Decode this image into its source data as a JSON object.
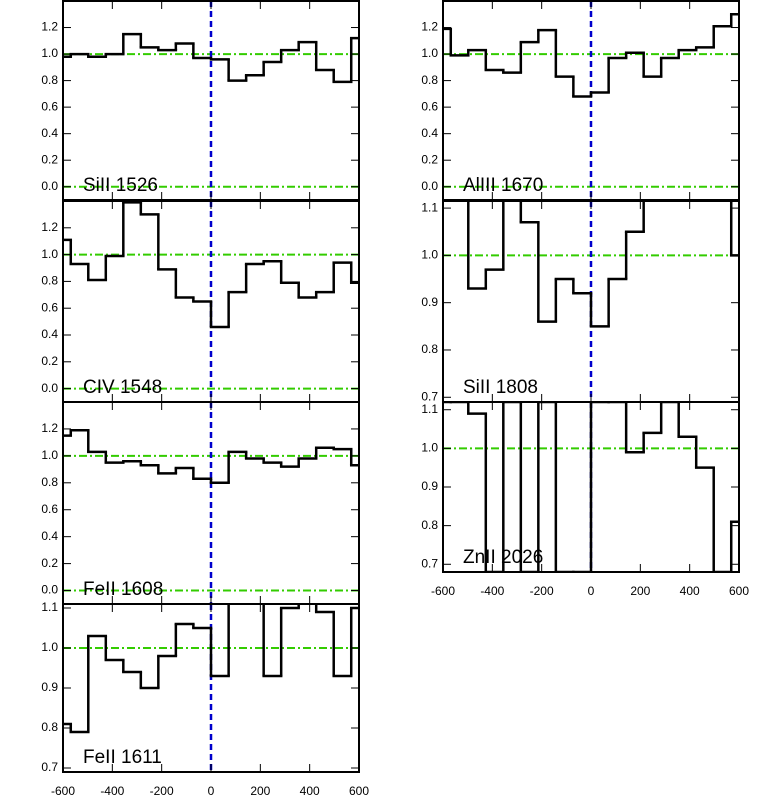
{
  "chart_data": [
    {
      "type": "step",
      "label": "SiII 1526",
      "x": [
        -604,
        -533,
        -462,
        -391,
        -320,
        -249,
        -178,
        -107,
        -36,
        36,
        107,
        178,
        249,
        320,
        391,
        462,
        533,
        604
      ],
      "values": [
        0.98,
        1.0,
        0.98,
        1.0,
        1.15,
        1.05,
        1.03,
        1.08,
        0.97,
        0.96,
        0.8,
        0.84,
        0.94,
        1.03,
        1.09,
        0.88,
        0.79,
        1.12
      ],
      "xlim": [
        -600,
        600
      ],
      "xticks": [
        -600,
        -400,
        -200,
        0,
        200,
        400,
        600
      ],
      "show_xtick_labels": false,
      "ylim": [
        -0.1,
        1.4
      ],
      "yticks": [
        {
          "value": 0,
          "label": "0.0"
        },
        0.2,
        0.4,
        0.6,
        0.8,
        {
          "value": 1,
          "label": "1.0"
        },
        1.2
      ],
      "hlines": [
        0,
        1
      ],
      "vline": 0,
      "color": "#000000",
      "hline_color": "#33cc00",
      "vline_color": "#0000cc"
    },
    {
      "type": "step",
      "label": "CIV 1548",
      "x": [
        -604,
        -533,
        -462,
        -391,
        -320,
        -249,
        -178,
        -107,
        -36,
        36,
        107,
        178,
        249,
        320,
        391,
        462,
        533,
        604
      ],
      "values": [
        1.11,
        0.93,
        0.81,
        0.99,
        1.39,
        1.3,
        0.89,
        0.68,
        0.65,
        0.46,
        0.72,
        0.93,
        0.95,
        0.79,
        0.68,
        0.72,
        0.94,
        0.79
      ],
      "xlim": [
        -600,
        600
      ],
      "xticks": [
        -600,
        -400,
        -200,
        0,
        200,
        400,
        600
      ],
      "show_xtick_labels": false,
      "ylim": [
        -0.1,
        1.4
      ],
      "yticks": [
        {
          "value": 0,
          "label": "0.0"
        },
        0.2,
        0.4,
        0.6,
        0.8,
        {
          "value": 1,
          "label": "1.0"
        },
        1.2
      ],
      "hlines": [
        0,
        1
      ],
      "vline": 0,
      "color": "#000000",
      "hline_color": "#33cc00",
      "vline_color": "#0000cc"
    },
    {
      "type": "step",
      "label": "FeII 1608",
      "x": [
        -604,
        -533,
        -462,
        -391,
        -320,
        -249,
        -178,
        -107,
        -36,
        36,
        107,
        178,
        249,
        320,
        391,
        462,
        533,
        604
      ],
      "values": [
        1.15,
        1.19,
        1.03,
        0.95,
        0.96,
        0.93,
        0.87,
        0.91,
        0.83,
        0.8,
        1.03,
        0.98,
        0.95,
        0.92,
        0.98,
        1.06,
        1.05,
        0.93
      ],
      "xlim": [
        -600,
        600
      ],
      "xticks": [
        -600,
        -400,
        -200,
        0,
        200,
        400,
        600
      ],
      "show_xtick_labels": false,
      "ylim": [
        -0.1,
        1.4
      ],
      "yticks": [
        {
          "value": 0,
          "label": "0.0"
        },
        0.2,
        0.4,
        0.6,
        0.8,
        {
          "value": 1,
          "label": "1.0"
        },
        1.2
      ],
      "hlines": [
        0,
        1
      ],
      "vline": 0,
      "color": "#000000",
      "hline_color": "#33cc00",
      "vline_color": "#0000cc"
    },
    {
      "type": "step",
      "label": "FeII 1611",
      "x": [
        -604,
        -533,
        -462,
        -391,
        -320,
        -249,
        -178,
        -107,
        -36,
        36,
        107,
        178,
        249,
        320,
        391,
        462,
        533,
        604
      ],
      "values": [
        0.81,
        0.79,
        1.03,
        0.97,
        0.94,
        0.9,
        0.98,
        1.06,
        1.05,
        0.93,
        1.12,
        1.12,
        0.93,
        1.1,
        1.12,
        1.09,
        0.93,
        1.1
      ],
      "xlim": [
        -600,
        600
      ],
      "xticks": [
        -600,
        -400,
        -200,
        0,
        200,
        400,
        600
      ],
      "show_xtick_labels": true,
      "ylim": [
        0.69,
        1.11
      ],
      "yticks": [
        0.7,
        0.8,
        0.9,
        {
          "value": 1,
          "label": "1.0"
        },
        1.1
      ],
      "hlines": [
        1
      ],
      "vline": 0,
      "color": "#000000",
      "hline_color": "#33cc00",
      "vline_color": "#0000cc"
    },
    {
      "type": "step",
      "label": "AlIII 1670",
      "x": [
        -604,
        -533,
        -462,
        -391,
        -320,
        -249,
        -178,
        -107,
        -36,
        36,
        107,
        178,
        249,
        320,
        391,
        462,
        533,
        604
      ],
      "values": [
        1.19,
        0.99,
        1.03,
        0.88,
        0.86,
        1.09,
        1.18,
        0.83,
        0.68,
        0.71,
        0.97,
        1.01,
        0.83,
        0.97,
        1.03,
        1.05,
        1.21,
        1.3
      ],
      "xlim": [
        -600,
        600
      ],
      "xticks": [
        -600,
        -400,
        -200,
        0,
        200,
        400,
        600
      ],
      "show_xtick_labels": false,
      "ylim": [
        -0.1,
        1.4
      ],
      "yticks": [
        {
          "value": 0,
          "label": "0.0"
        },
        0.2,
        0.4,
        0.6,
        0.8,
        {
          "value": 1,
          "label": "1.0"
        },
        1.2
      ],
      "hlines": [
        0,
        1
      ],
      "vline": 0,
      "color": "#000000",
      "hline_color": "#33cc00",
      "vline_color": "#0000cc"
    },
    {
      "type": "step",
      "label": "SiII 1808",
      "x": [
        -604,
        -533,
        -462,
        -391,
        -320,
        -249,
        -178,
        -107,
        -36,
        36,
        107,
        178,
        249,
        320,
        391,
        462,
        533,
        604
      ],
      "values": [
        1.12,
        1.12,
        0.93,
        0.97,
        1.12,
        1.07,
        0.86,
        0.95,
        0.92,
        0.85,
        0.95,
        1.05,
        1.12,
        1.12,
        1.12,
        1.12,
        1.12,
        1.0
      ],
      "xlim": [
        -600,
        600
      ],
      "xticks": [
        -600,
        -400,
        -200,
        0,
        200,
        400,
        600
      ],
      "show_xtick_labels": false,
      "ylim": [
        0.69,
        1.115
      ],
      "yticks": [
        0.7,
        0.8,
        0.9,
        {
          "value": 1,
          "label": "1.0"
        },
        1.1
      ],
      "hlines": [
        1
      ],
      "vline": 0,
      "color": "#000000",
      "hline_color": "#33cc00",
      "vline_color": "#0000cc"
    },
    {
      "type": "step",
      "label": "ZnII 2026",
      "x": [
        -604,
        -533,
        -462,
        -391,
        -320,
        -249,
        -178,
        -107,
        -36,
        36,
        107,
        178,
        249,
        320,
        391,
        462,
        533,
        604
      ],
      "values": [
        1.12,
        1.12,
        1.09,
        0.68,
        1.12,
        0.68,
        1.12,
        0.68,
        0.68,
        1.12,
        1.12,
        0.99,
        1.04,
        1.12,
        1.03,
        0.95,
        0.68,
        0.81
      ],
      "xlim": [
        -600,
        600
      ],
      "xticks": [
        -600,
        -400,
        -200,
        0,
        200,
        400,
        600
      ],
      "show_xtick_labels": true,
      "ylim": [
        0.68,
        1.12
      ],
      "yticks": [
        0.7,
        0.8,
        0.9,
        {
          "value": 1,
          "label": "1.0"
        },
        1.1
      ],
      "hlines": [
        1
      ],
      "vline": 0,
      "color": "#000000",
      "hline_color": "#33cc00",
      "vline_color": "#0000cc"
    }
  ]
}
